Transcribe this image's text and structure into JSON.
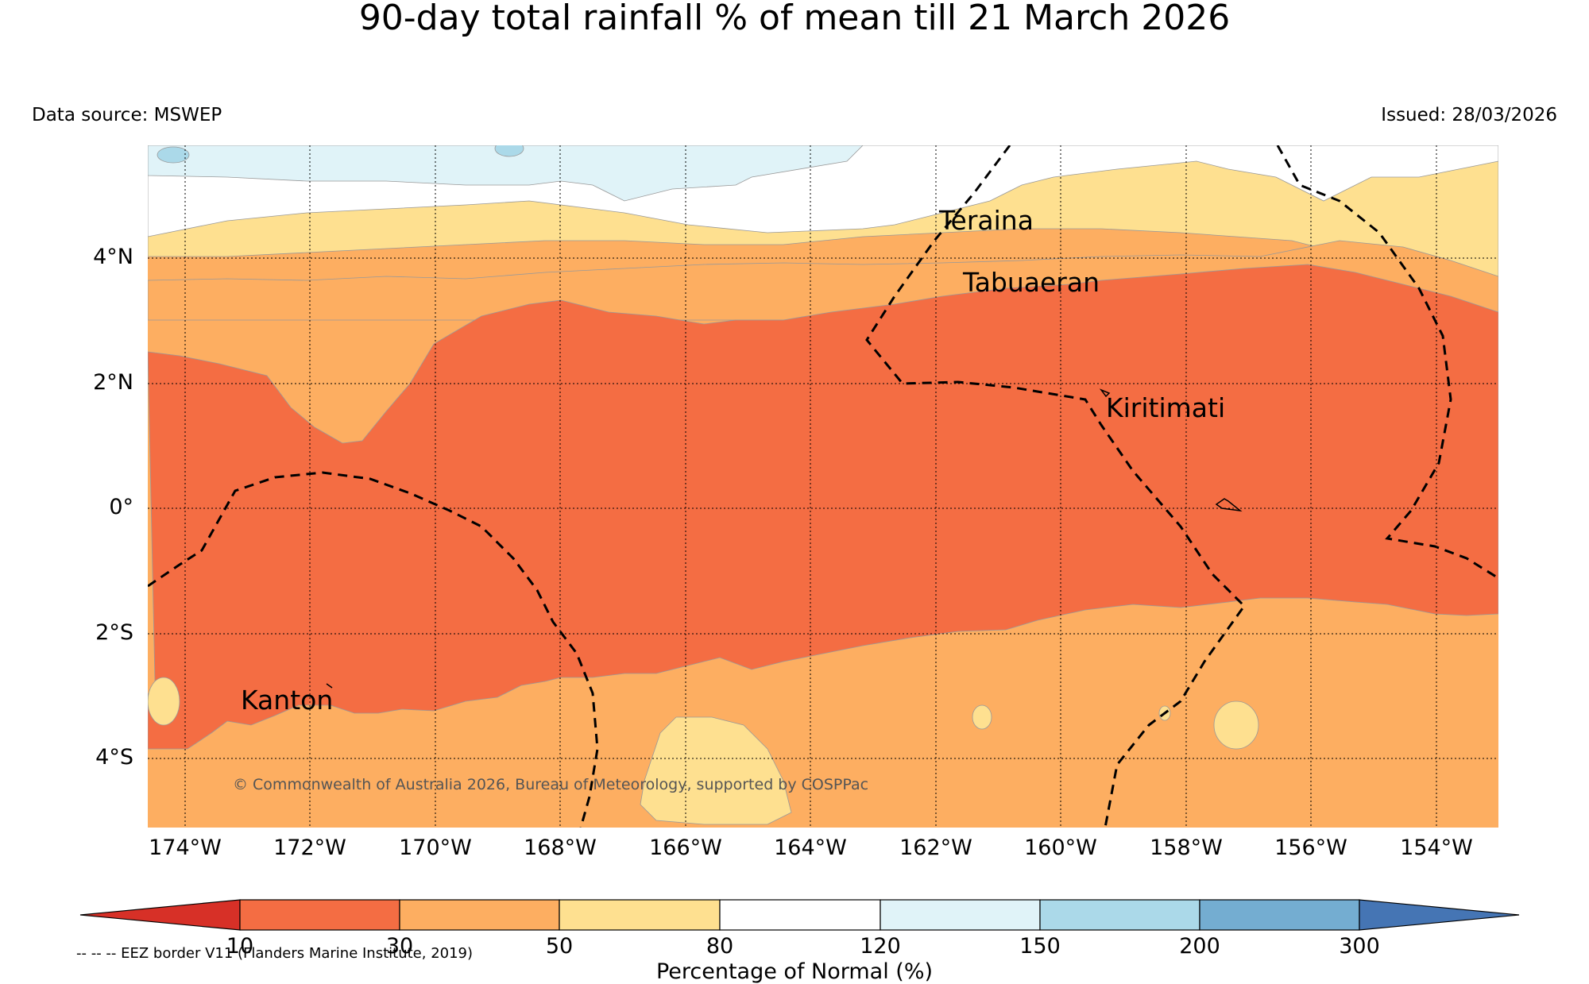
{
  "title": "90-day total rainfall % of mean till 21 March 2026",
  "data_source": "Data source: MSWEP",
  "issued": "Issued: 28/03/2026",
  "lat_labels": [
    "4°N",
    "2°N",
    "0°",
    "2°S",
    "4°S"
  ],
  "lon_labels": [
    "174°W",
    "172°W",
    "170°W",
    "168°W",
    "166°W",
    "164°W",
    "162°W",
    "160°W",
    "158°W",
    "156°W",
    "154°W"
  ],
  "places": {
    "teraina": "Teraina",
    "tabuaeran": "Tabuaeran",
    "kiritimati": "Kiritimati",
    "kanton": "Kanton"
  },
  "copyright": "© Commonwealth of Australia 2026, Bureau of Meteorology, supported by COSPPac",
  "colorbar": {
    "ticks": [
      "10",
      "30",
      "50",
      "80",
      "120",
      "150",
      "200",
      "300"
    ],
    "label": "Percentage of Normal (%)",
    "colors": {
      "under": "#d73027",
      "c10_30": "#f46d43",
      "c30_50": "#fdae61",
      "c50_80": "#fee090",
      "c80_120": "#ffffff",
      "c120_150": "#e0f3f8",
      "c150_200": "#abd9e9",
      "c200_300": "#74add1",
      "over": "#4575b4"
    }
  },
  "eez_note": "-- -- -- EEZ border V11 (Flanders Marine Institute, 2019)"
}
